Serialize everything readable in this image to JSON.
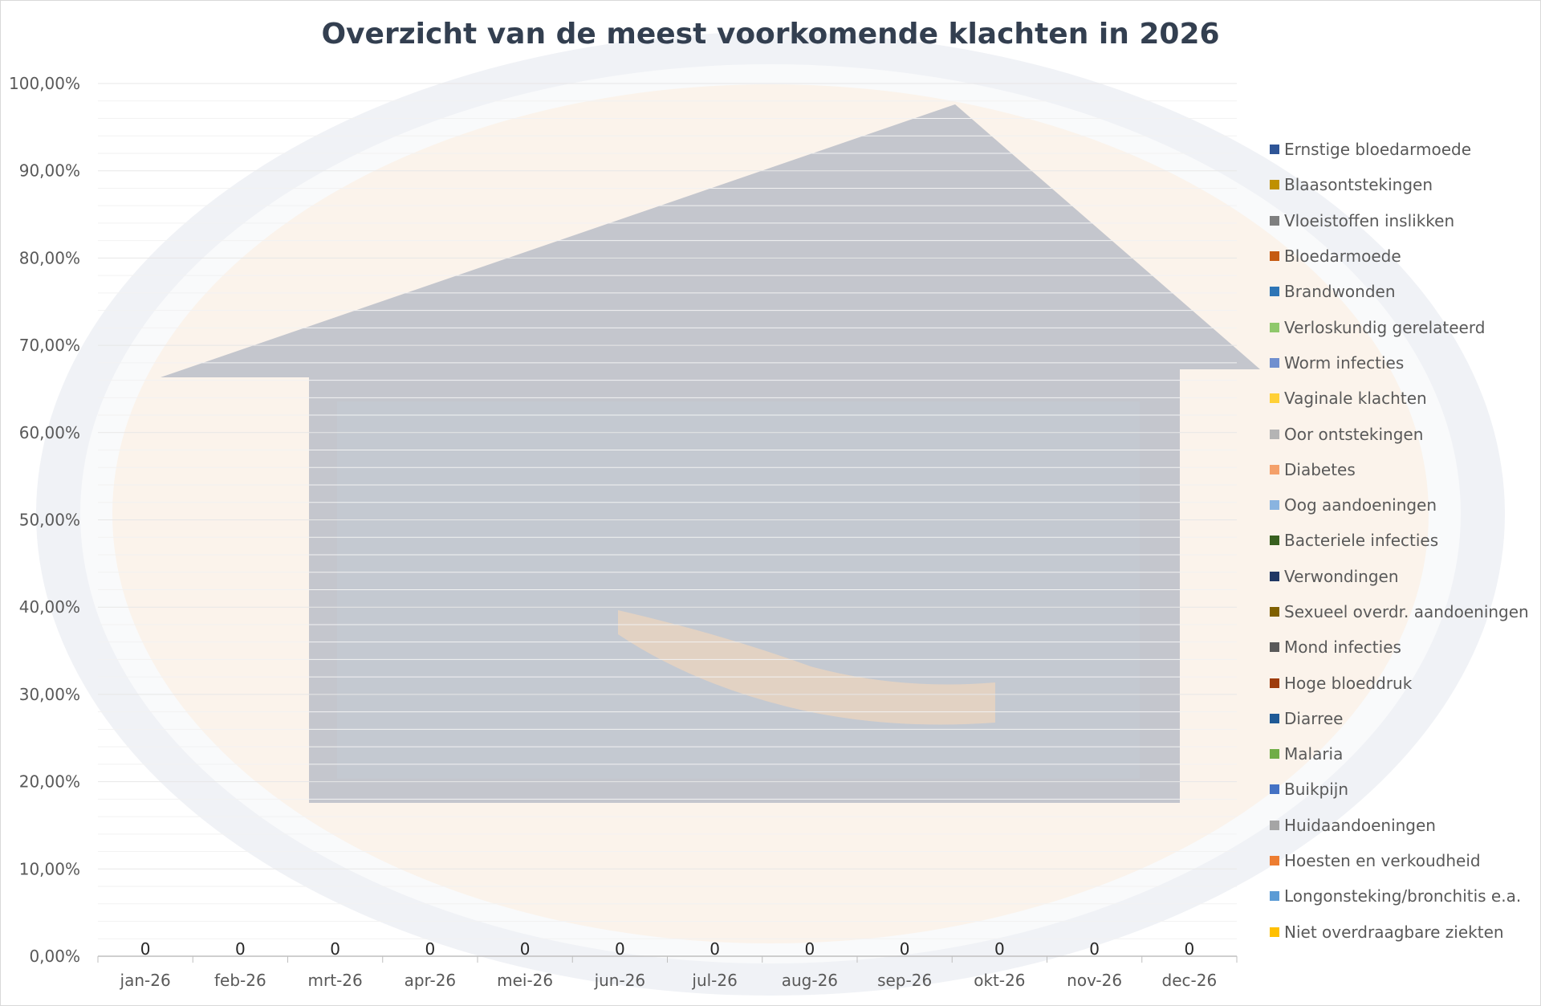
{
  "chart_data": {
    "type": "bar",
    "title": "Overzicht van de meest voorkomende klachten in 2026",
    "xlabel": "",
    "ylabel": "",
    "ylim": [
      0,
      1
    ],
    "y_tick_values": [
      0,
      0.1,
      0.2,
      0.3,
      0.4,
      0.5,
      0.6,
      0.7,
      0.8,
      0.9,
      1.0
    ],
    "y_tick_labels": [
      "0,00%",
      "10,00%",
      "20,00%",
      "30,00%",
      "40,00%",
      "50,00%",
      "60,00%",
      "70,00%",
      "80,00%",
      "90,00%",
      "100,00%"
    ],
    "grid": true,
    "legend_position": "right",
    "categories": [
      "jan-26",
      "feb-26",
      "mrt-26",
      "apr-26",
      "mei-26",
      "jun-26",
      "jul-26",
      "aug-26",
      "sep-26",
      "okt-26",
      "nov-26",
      "dec-26"
    ],
    "data_labels": [
      "0",
      "0",
      "0",
      "0",
      "0",
      "0",
      "0",
      "0",
      "0",
      "0",
      "0",
      "0"
    ],
    "series": [
      {
        "name": "Ernstige bloedarmoede",
        "color": "#2f5597",
        "values": [
          0,
          0,
          0,
          0,
          0,
          0,
          0,
          0,
          0,
          0,
          0,
          0
        ]
      },
      {
        "name": "Blaasontstekingen",
        "color": "#bf9000",
        "values": [
          0,
          0,
          0,
          0,
          0,
          0,
          0,
          0,
          0,
          0,
          0,
          0
        ]
      },
      {
        "name": "Vloeistoffen inslikken",
        "color": "#7f7f7f",
        "values": [
          0,
          0,
          0,
          0,
          0,
          0,
          0,
          0,
          0,
          0,
          0,
          0
        ]
      },
      {
        "name": "Bloedarmoede",
        "color": "#c55a11",
        "values": [
          0,
          0,
          0,
          0,
          0,
          0,
          0,
          0,
          0,
          0,
          0,
          0
        ]
      },
      {
        "name": "Brandwonden",
        "color": "#2e75b6",
        "values": [
          0,
          0,
          0,
          0,
          0,
          0,
          0,
          0,
          0,
          0,
          0,
          0
        ]
      },
      {
        "name": "Verloskundig gerelateerd",
        "color": "#8fc86b",
        "values": [
          0,
          0,
          0,
          0,
          0,
          0,
          0,
          0,
          0,
          0,
          0,
          0
        ]
      },
      {
        "name": "Worm infecties",
        "color": "#6f8fcf",
        "values": [
          0,
          0,
          0,
          0,
          0,
          0,
          0,
          0,
          0,
          0,
          0,
          0
        ]
      },
      {
        "name": "Vaginale klachten",
        "color": "#ffd036",
        "values": [
          0,
          0,
          0,
          0,
          0,
          0,
          0,
          0,
          0,
          0,
          0,
          0
        ]
      },
      {
        "name": "Oor ontstekingen",
        "color": "#b4b4b4",
        "values": [
          0,
          0,
          0,
          0,
          0,
          0,
          0,
          0,
          0,
          0,
          0,
          0
        ]
      },
      {
        "name": "Diabetes",
        "color": "#f4a06a",
        "values": [
          0,
          0,
          0,
          0,
          0,
          0,
          0,
          0,
          0,
          0,
          0,
          0
        ]
      },
      {
        "name": "Oog aandoeningen",
        "color": "#8ab4e0",
        "values": [
          0,
          0,
          0,
          0,
          0,
          0,
          0,
          0,
          0,
          0,
          0,
          0
        ]
      },
      {
        "name": "Bacteriele infecties",
        "color": "#38601f",
        "values": [
          0,
          0,
          0,
          0,
          0,
          0,
          0,
          0,
          0,
          0,
          0,
          0
        ]
      },
      {
        "name": "Verwondingen",
        "color": "#203864",
        "values": [
          0,
          0,
          0,
          0,
          0,
          0,
          0,
          0,
          0,
          0,
          0,
          0
        ]
      },
      {
        "name": "Sexueel overdr. aandoeningen",
        "color": "#7f6000",
        "values": [
          0,
          0,
          0,
          0,
          0,
          0,
          0,
          0,
          0,
          0,
          0,
          0
        ]
      },
      {
        "name": "Mond infecties",
        "color": "#595959",
        "values": [
          0,
          0,
          0,
          0,
          0,
          0,
          0,
          0,
          0,
          0,
          0,
          0
        ]
      },
      {
        "name": "Hoge bloeddruk",
        "color": "#9e3c0c",
        "values": [
          0,
          0,
          0,
          0,
          0,
          0,
          0,
          0,
          0,
          0,
          0,
          0
        ]
      },
      {
        "name": "Diarree",
        "color": "#1f5a96",
        "values": [
          0,
          0,
          0,
          0,
          0,
          0,
          0,
          0,
          0,
          0,
          0,
          0
        ]
      },
      {
        "name": "Malaria",
        "color": "#70ad47",
        "values": [
          0,
          0,
          0,
          0,
          0,
          0,
          0,
          0,
          0,
          0,
          0,
          0
        ]
      },
      {
        "name": "Buikpijn",
        "color": "#4472c4",
        "values": [
          0,
          0,
          0,
          0,
          0,
          0,
          0,
          0,
          0,
          0,
          0,
          0
        ]
      },
      {
        "name": "Huidaandoeningen",
        "color": "#a5a5a5",
        "values": [
          0,
          0,
          0,
          0,
          0,
          0,
          0,
          0,
          0,
          0,
          0,
          0
        ]
      },
      {
        "name": "Hoesten en verkoudheid",
        "color": "#ed7d31",
        "values": [
          0,
          0,
          0,
          0,
          0,
          0,
          0,
          0,
          0,
          0,
          0,
          0
        ]
      },
      {
        "name": "Longonsteking/bronchitis e.a.",
        "color": "#5b9bd5",
        "values": [
          0,
          0,
          0,
          0,
          0,
          0,
          0,
          0,
          0,
          0,
          0,
          0
        ]
      },
      {
        "name": "Niet overdraagbare ziekten",
        "color": "#ffc000",
        "values": [
          0,
          0,
          0,
          0,
          0,
          0,
          0,
          0,
          0,
          0,
          0,
          0
        ]
      }
    ]
  }
}
